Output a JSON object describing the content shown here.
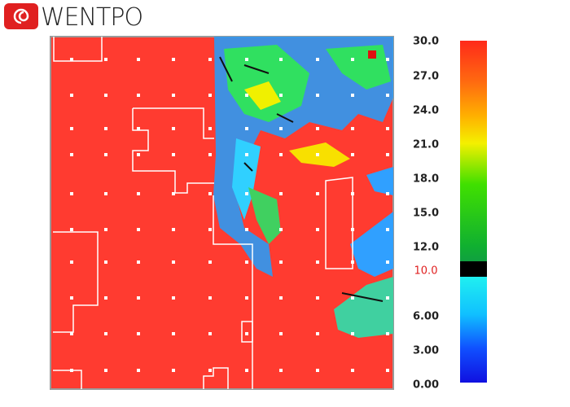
{
  "logo": {
    "text": "WENTPO"
  },
  "colorbar": {
    "labels": [
      "30.0",
      "27.0",
      "24.0",
      "21.0",
      "18.0",
      "15.0",
      "12.0",
      "10.0",
      "6.00",
      "3.00",
      "0.00"
    ]
  }
}
